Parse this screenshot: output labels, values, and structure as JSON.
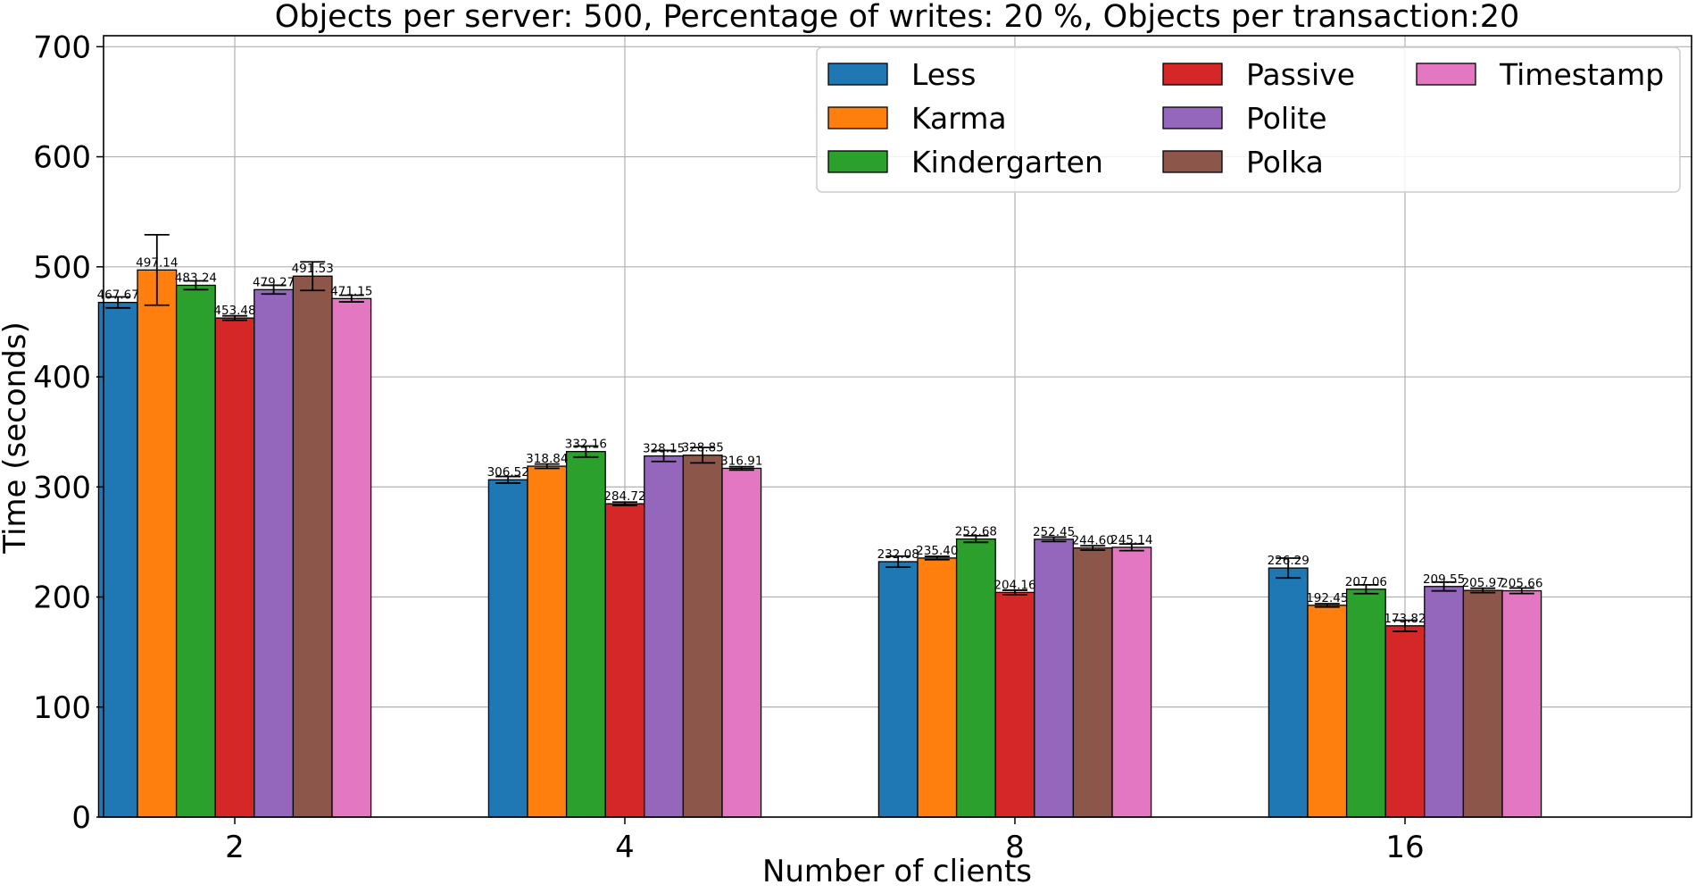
{
  "chart_data": {
    "type": "bar",
    "title": "Objects per server: 500, Percentage of writes: 20 %, Objects per transaction:20",
    "xlabel": "Number of clients",
    "ylabel": "Time (seconds)",
    "ylim": [
      0,
      710
    ],
    "yticks": [
      "0",
      "100",
      "200",
      "300",
      "400",
      "500",
      "600",
      "700"
    ],
    "categories": [
      "2",
      "4",
      "8",
      "16"
    ],
    "grid": true,
    "legend_position": "top-right",
    "series": [
      {
        "name": "Less",
        "color": "#1f77b4",
        "values": [
          467.67,
          306.52,
          232.08,
          226.29
        ],
        "errors": [
          5,
          3,
          5,
          9
        ],
        "labels": [
          "467.67",
          "306.52",
          "232.08",
          "226.29"
        ]
      },
      {
        "name": "Karma",
        "color": "#ff7f0e",
        "values": [
          497.14,
          318.84,
          235.4,
          192.45
        ],
        "errors": [
          32,
          2,
          1.5,
          1.5
        ],
        "labels": [
          "497.14",
          "318.84",
          "235.40",
          "192.45"
        ]
      },
      {
        "name": "Kindergarten",
        "color": "#2ca02c",
        "values": [
          483.24,
          332.16,
          252.68,
          207.06
        ],
        "errors": [
          4,
          5,
          3,
          4
        ],
        "labels": [
          "483.24",
          "332.16",
          "252.68",
          "207.06"
        ]
      },
      {
        "name": "Passive",
        "color": "#d62728",
        "values": [
          453.48,
          284.72,
          204.16,
          173.82
        ],
        "errors": [
          2,
          1.5,
          2,
          5
        ],
        "labels": [
          "453.48",
          "284.72",
          "204.16",
          "173.82"
        ]
      },
      {
        "name": "Polite",
        "color": "#9467bd",
        "values": [
          479.27,
          328.15,
          252.45,
          209.55
        ],
        "errors": [
          4,
          5,
          2,
          4
        ],
        "labels": [
          "479.27",
          "328.15",
          "252.45",
          "209.55"
        ]
      },
      {
        "name": "Polka",
        "color": "#8c564b",
        "values": [
          491.53,
          328.85,
          244.6,
          205.97
        ],
        "errors": [
          13,
          7,
          2,
          2
        ],
        "labels": [
          "491.53",
          "328.85",
          "244.60",
          "205.97"
        ]
      },
      {
        "name": "Timestamp",
        "color": "#e377c2",
        "values": [
          471.15,
          316.91,
          245.14,
          205.66
        ],
        "errors": [
          3,
          1.5,
          3,
          2.5
        ],
        "labels": [
          "471.15",
          "316.91",
          "245.14",
          "205.66"
        ]
      }
    ]
  }
}
